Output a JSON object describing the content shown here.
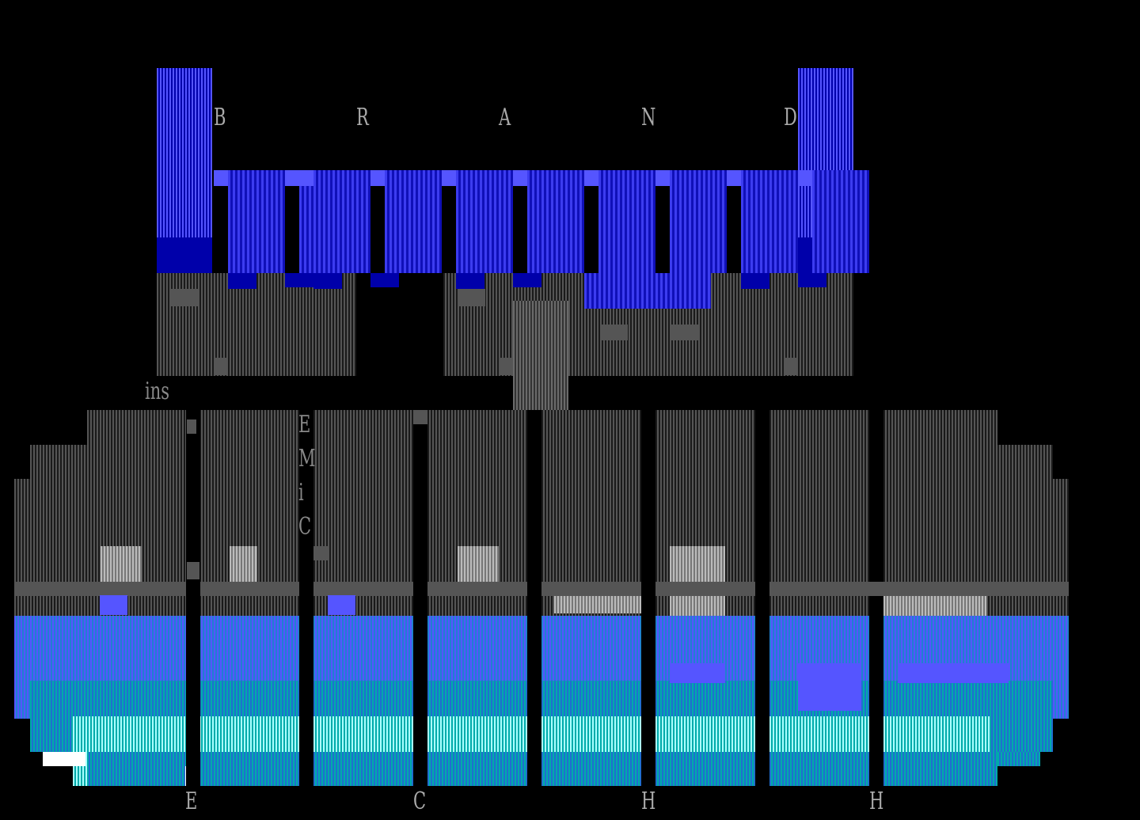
{
  "artwork": {
    "title_letters": [
      "B",
      "R",
      "A",
      "N",
      "D"
    ],
    "side_tag": "ins",
    "vertical_tag": [
      "E",
      "M",
      "i",
      "C"
    ],
    "bottom_letters": [
      "E",
      "C",
      "H",
      "H"
    ]
  },
  "colors": {
    "background": "#000000",
    "blue": "#0000aa",
    "light_blue": "#5555ff",
    "cyan": "#00aaaa",
    "gray": "#555555",
    "light_gray": "#aaaaaa",
    "white": "#ffffff"
  }
}
